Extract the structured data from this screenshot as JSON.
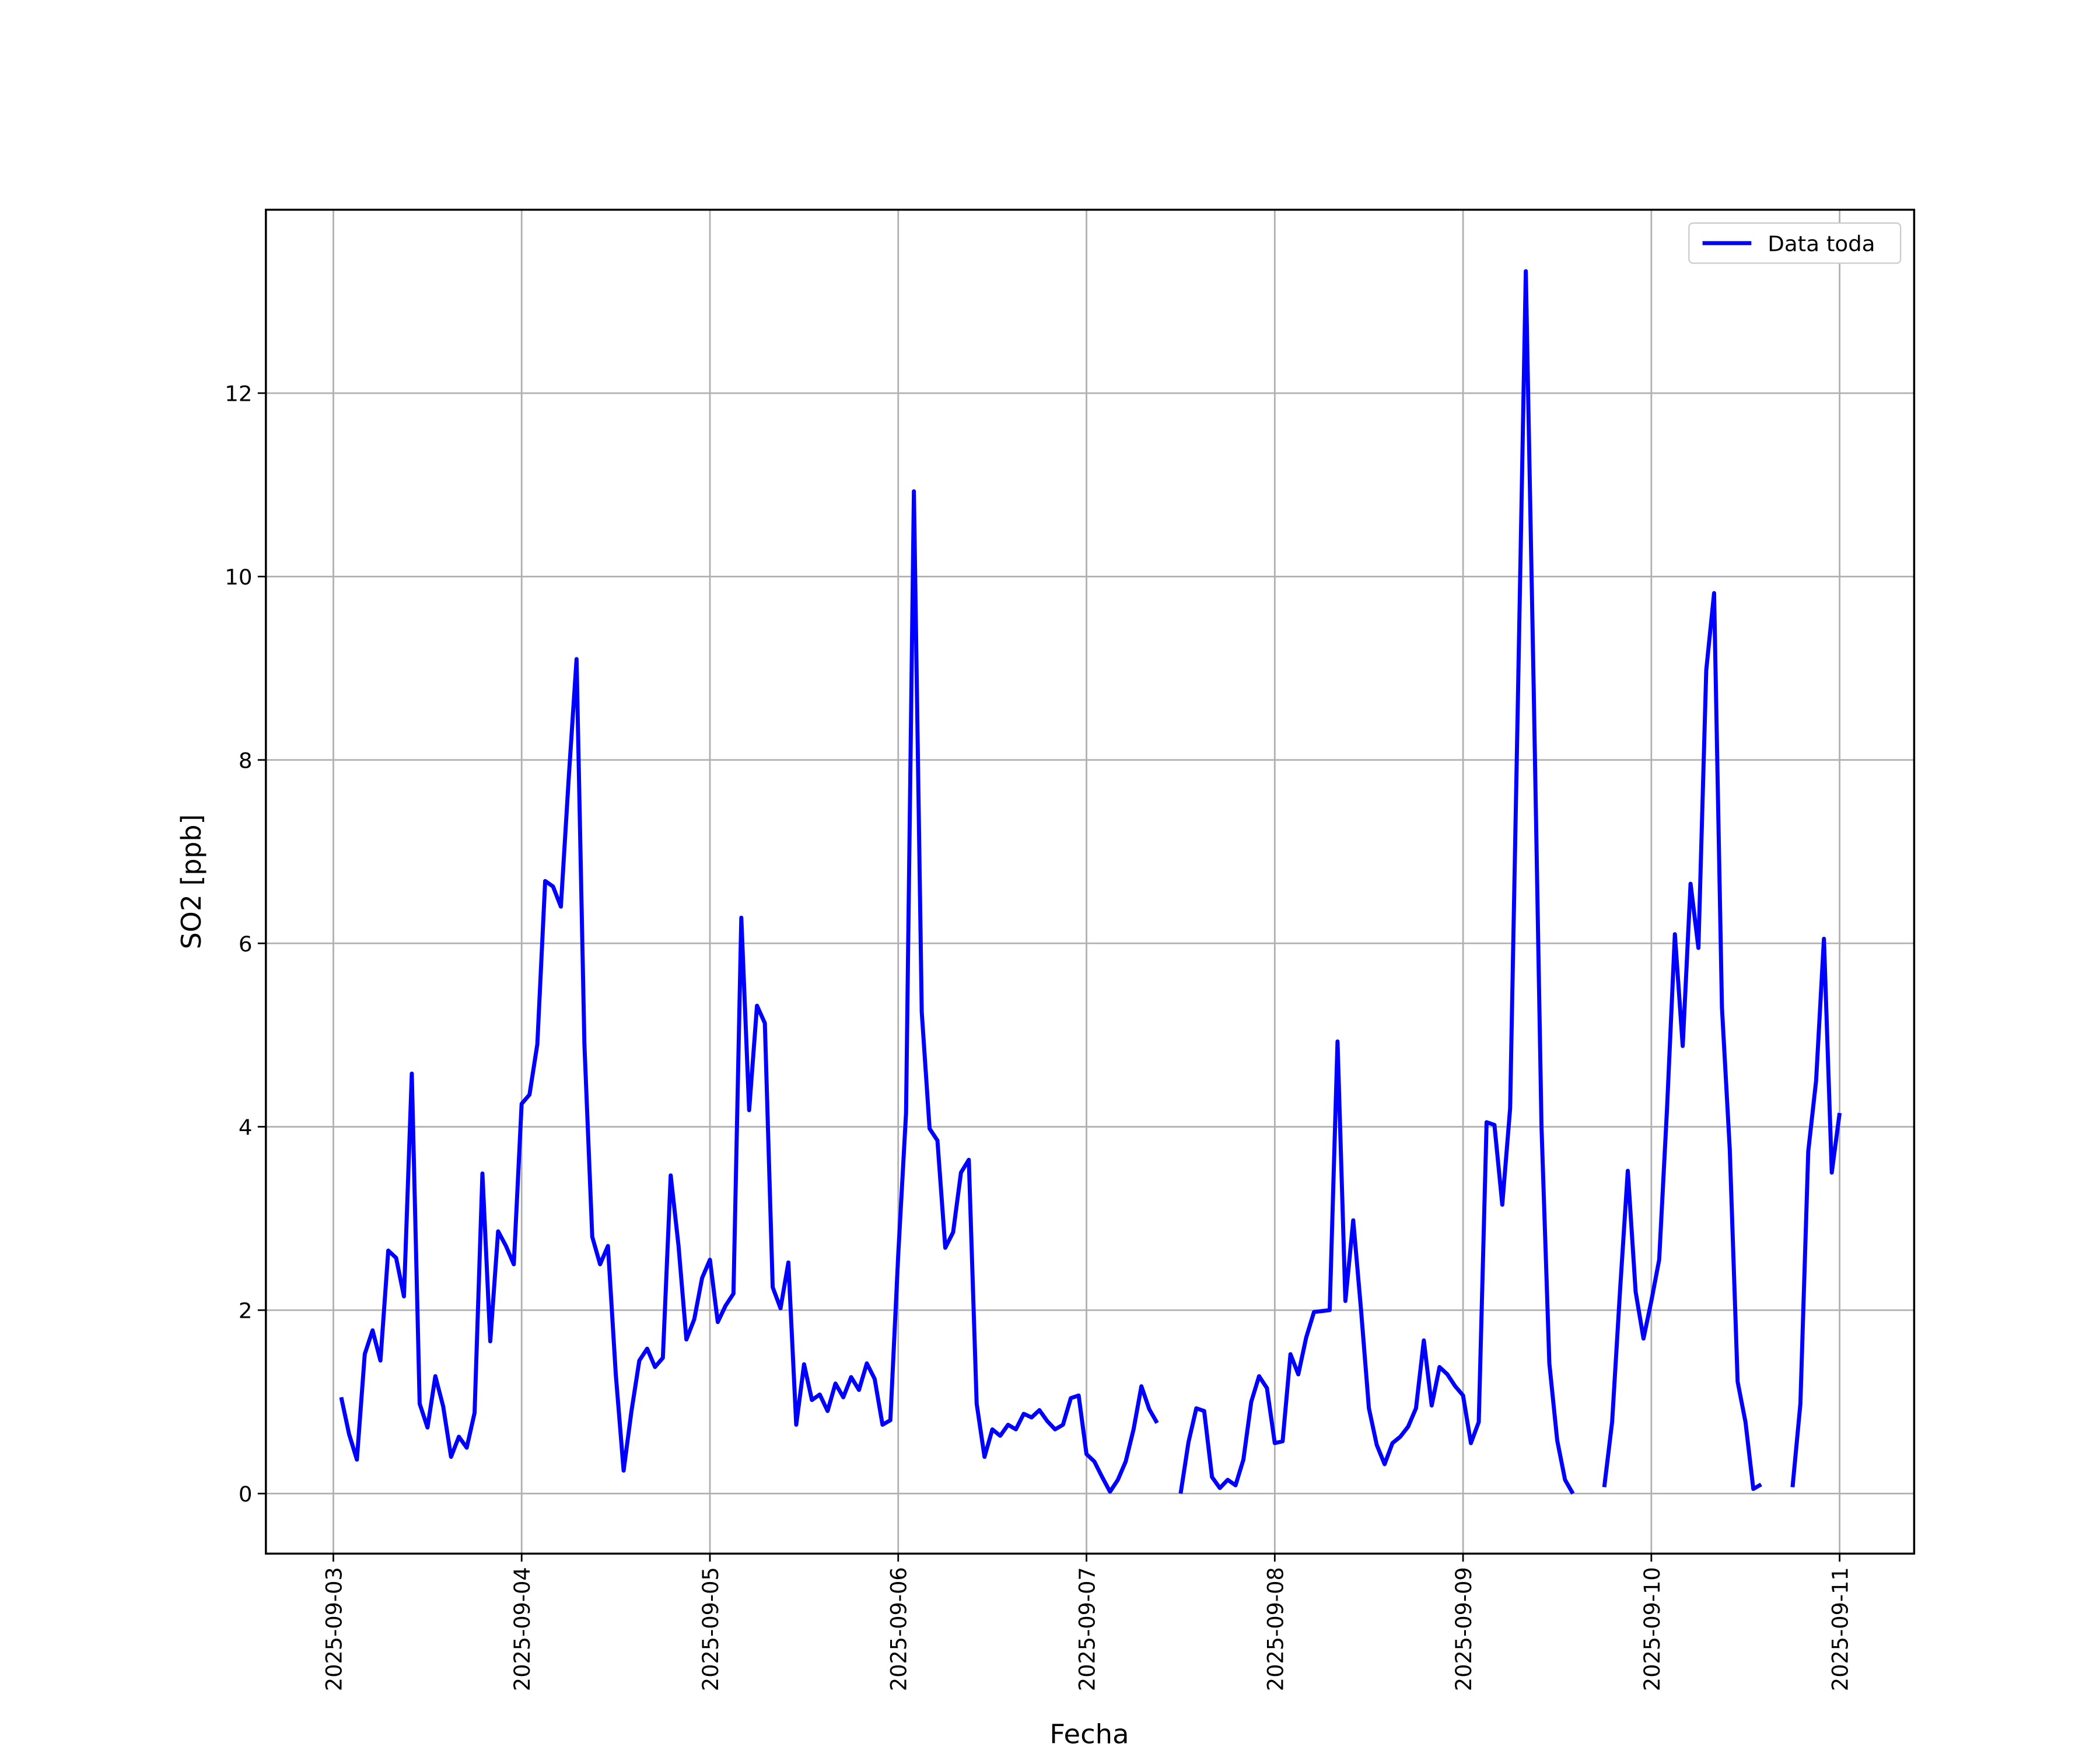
{
  "chart_data": {
    "type": "line",
    "xlabel": "Fecha",
    "ylabel": "SO2 [ppb]",
    "x": [
      "2025-09-03 01:00",
      "2025-09-03 02:00",
      "2025-09-03 03:00",
      "2025-09-03 04:00",
      "2025-09-03 05:00",
      "2025-09-03 06:00",
      "2025-09-03 07:00",
      "2025-09-03 08:00",
      "2025-09-03 09:00",
      "2025-09-03 10:00",
      "2025-09-03 11:00",
      "2025-09-03 12:00",
      "2025-09-03 13:00",
      "2025-09-03 14:00",
      "2025-09-03 15:00",
      "2025-09-03 16:00",
      "2025-09-03 17:00",
      "2025-09-03 18:00",
      "2025-09-03 19:00",
      "2025-09-03 20:00",
      "2025-09-03 21:00",
      "2025-09-03 22:00",
      "2025-09-03 23:00",
      "2025-09-04 00:00",
      "2025-09-04 01:00",
      "2025-09-04 02:00",
      "2025-09-04 03:00",
      "2025-09-04 04:00",
      "2025-09-04 05:00",
      "2025-09-04 06:00",
      "2025-09-04 07:00",
      "2025-09-04 08:00",
      "2025-09-04 09:00",
      "2025-09-04 10:00",
      "2025-09-04 11:00",
      "2025-09-04 12:00",
      "2025-09-04 13:00",
      "2025-09-04 14:00",
      "2025-09-04 15:00",
      "2025-09-04 16:00",
      "2025-09-04 17:00",
      "2025-09-04 18:00",
      "2025-09-04 19:00",
      "2025-09-04 20:00",
      "2025-09-04 21:00",
      "2025-09-04 22:00",
      "2025-09-04 23:00",
      "2025-09-05 00:00",
      "2025-09-05 01:00",
      "2025-09-05 02:00",
      "2025-09-05 03:00",
      "2025-09-05 04:00",
      "2025-09-05 05:00",
      "2025-09-05 06:00",
      "2025-09-05 07:00",
      "2025-09-05 08:00",
      "2025-09-05 09:00",
      "2025-09-05 10:00",
      "2025-09-05 11:00",
      "2025-09-05 12:00",
      "2025-09-05 13:00",
      "2025-09-05 14:00",
      "2025-09-05 15:00",
      "2025-09-05 16:00",
      "2025-09-05 17:00",
      "2025-09-05 18:00",
      "2025-09-05 19:00",
      "2025-09-05 20:00",
      "2025-09-05 21:00",
      "2025-09-05 22:00",
      "2025-09-05 23:00",
      "2025-09-06 00:00",
      "2025-09-06 01:00",
      "2025-09-06 02:00",
      "2025-09-06 03:00",
      "2025-09-06 04:00",
      "2025-09-06 05:00",
      "2025-09-06 06:00",
      "2025-09-06 07:00",
      "2025-09-06 08:00",
      "2025-09-06 09:00",
      "2025-09-06 10:00",
      "2025-09-06 11:00",
      "2025-09-06 12:00",
      "2025-09-06 13:00",
      "2025-09-06 14:00",
      "2025-09-06 15:00",
      "2025-09-06 16:00",
      "2025-09-06 17:00",
      "2025-09-06 18:00",
      "2025-09-06 19:00",
      "2025-09-06 20:00",
      "2025-09-06 21:00",
      "2025-09-06 22:00",
      "2025-09-06 23:00",
      "2025-09-07 00:00",
      "2025-09-07 01:00",
      "2025-09-07 02:00",
      "2025-09-07 03:00",
      "2025-09-07 04:00",
      "2025-09-07 05:00",
      "2025-09-07 06:00",
      "2025-09-07 07:00",
      "2025-09-07 08:00",
      "2025-09-07 09:00",
      "2025-09-07 10:00",
      "2025-09-07 11:00",
      "2025-09-07 12:00",
      "2025-09-07 13:00",
      "2025-09-07 14:00",
      "2025-09-07 15:00",
      "2025-09-07 16:00",
      "2025-09-07 17:00",
      "2025-09-07 18:00",
      "2025-09-07 19:00",
      "2025-09-07 20:00",
      "2025-09-07 21:00",
      "2025-09-07 22:00",
      "2025-09-07 23:00",
      "2025-09-08 00:00",
      "2025-09-08 01:00",
      "2025-09-08 02:00",
      "2025-09-08 03:00",
      "2025-09-08 04:00",
      "2025-09-08 05:00",
      "2025-09-08 06:00",
      "2025-09-08 07:00",
      "2025-09-08 08:00",
      "2025-09-08 09:00",
      "2025-09-08 10:00",
      "2025-09-08 11:00",
      "2025-09-08 12:00",
      "2025-09-08 13:00",
      "2025-09-08 14:00",
      "2025-09-08 15:00",
      "2025-09-08 16:00",
      "2025-09-08 17:00",
      "2025-09-08 18:00",
      "2025-09-08 19:00",
      "2025-09-08 20:00",
      "2025-09-08 21:00",
      "2025-09-08 22:00",
      "2025-09-08 23:00",
      "2025-09-09 00:00",
      "2025-09-09 01:00",
      "2025-09-09 02:00",
      "2025-09-09 03:00",
      "2025-09-09 04:00",
      "2025-09-09 05:00",
      "2025-09-09 06:00",
      "2025-09-09 07:00",
      "2025-09-09 08:00",
      "2025-09-09 09:00",
      "2025-09-09 10:00",
      "2025-09-09 11:00",
      "2025-09-09 12:00",
      "2025-09-09 13:00",
      "2025-09-09 14:00",
      "2025-09-09 15:00",
      "2025-09-09 16:00",
      "2025-09-09 17:00",
      "2025-09-09 18:00",
      "2025-09-09 19:00",
      "2025-09-09 20:00",
      "2025-09-09 21:00",
      "2025-09-09 22:00",
      "2025-09-09 23:00",
      "2025-09-10 00:00",
      "2025-09-10 01:00",
      "2025-09-10 02:00",
      "2025-09-10 03:00",
      "2025-09-10 04:00",
      "2025-09-10 05:00",
      "2025-09-10 06:00",
      "2025-09-10 07:00",
      "2025-09-10 08:00",
      "2025-09-10 09:00",
      "2025-09-10 10:00",
      "2025-09-10 11:00",
      "2025-09-10 12:00",
      "2025-09-10 13:00",
      "2025-09-10 14:00",
      "2025-09-10 15:00",
      "2025-09-10 16:00",
      "2025-09-10 17:00",
      "2025-09-10 18:00",
      "2025-09-10 19:00",
      "2025-09-10 20:00",
      "2025-09-10 21:00",
      "2025-09-10 22:00",
      "2025-09-10 23:00",
      "2025-09-11 00:00"
    ],
    "series": [
      {
        "name": "Data toda",
        "color": "#0000ff",
        "values": [
          1.05,
          0.65,
          0.37,
          1.52,
          1.78,
          1.45,
          2.65,
          2.57,
          2.15,
          4.58,
          0.98,
          0.72,
          1.28,
          0.95,
          0.4,
          0.62,
          0.5,
          0.88,
          3.49,
          1.66,
          2.86,
          2.7,
          2.5,
          4.25,
          4.35,
          4.9,
          6.68,
          6.62,
          6.4,
          7.8,
          9.1,
          4.9,
          2.8,
          2.5,
          2.7,
          1.3,
          0.25,
          0.9,
          1.45,
          1.58,
          1.38,
          1.48,
          3.47,
          2.7,
          1.68,
          1.9,
          2.35,
          2.55,
          1.87,
          2.05,
          2.18,
          6.28,
          4.18,
          5.32,
          5.13,
          2.25,
          2.02,
          2.52,
          0.75,
          1.41,
          1.02,
          1.08,
          0.9,
          1.2,
          1.05,
          1.27,
          1.13,
          1.42,
          1.25,
          0.75,
          0.8,
          2.6,
          4.15,
          10.93,
          5.25,
          3.98,
          3.85,
          2.68,
          2.85,
          3.5,
          3.64,
          0.98,
          0.4,
          0.7,
          0.63,
          0.75,
          0.7,
          0.87,
          0.83,
          0.91,
          0.79,
          0.7,
          0.75,
          1.04,
          1.07,
          0.43,
          0.35,
          0.18,
          0.02,
          0.15,
          0.35,
          0.7,
          1.17,
          0.92,
          0.77,
          null,
          null,
          0.0,
          0.56,
          0.93,
          0.9,
          0.18,
          0.06,
          0.15,
          0.09,
          0.37,
          1.0,
          1.28,
          1.15,
          0.55,
          0.57,
          1.52,
          1.3,
          1.7,
          1.98,
          1.99,
          2.0,
          4.93,
          2.1,
          2.98,
          2.0,
          0.93,
          0.53,
          0.32,
          0.55,
          0.62,
          0.73,
          0.93,
          1.67,
          0.96,
          1.38,
          1.3,
          1.17,
          1.07,
          0.55,
          0.78,
          4.05,
          4.02,
          3.15,
          4.2,
          8.7,
          13.33,
          8.8,
          4.0,
          1.42,
          0.58,
          0.15,
          0.0,
          null,
          null,
          null,
          0.07,
          0.78,
          2.2,
          3.52,
          2.2,
          1.69,
          2.1,
          2.55,
          4.2,
          6.1,
          4.88,
          6.65,
          5.95,
          8.98,
          9.82,
          5.3,
          3.75,
          1.22,
          0.78,
          0.05,
          0.1,
          null,
          null,
          null,
          0.07,
          0.98,
          3.73,
          4.5,
          6.05,
          3.5,
          4.15
        ]
      }
    ],
    "xlim": [
      "2025-09-02 15:24",
      "2025-09-11 09:30"
    ],
    "xticks": [
      "2025-09-03",
      "2025-09-04",
      "2025-09-05",
      "2025-09-06",
      "2025-09-07",
      "2025-09-08",
      "2025-09-09",
      "2025-09-10",
      "2025-09-11"
    ],
    "ylim": [
      -0.655,
      14.0
    ],
    "yticks": [
      0,
      2,
      4,
      6,
      8,
      10,
      12
    ],
    "grid": true,
    "legend": "upper right"
  }
}
